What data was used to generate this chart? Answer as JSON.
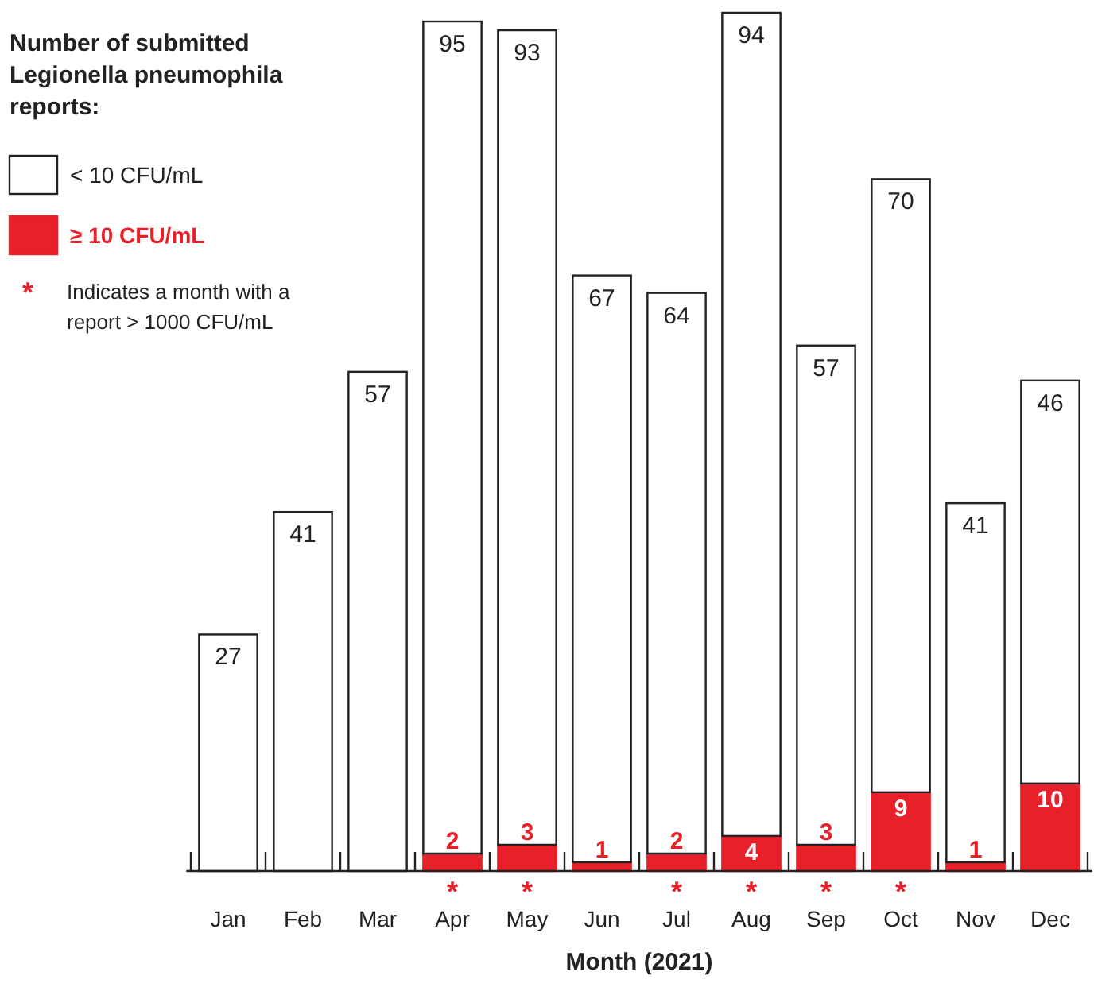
{
  "chart_data": {
    "type": "bar",
    "stacked": true,
    "data_labels": true,
    "legend": "top left",
    "legend_title": "Number of submitted Legionella pneumophila reports:",
    "xlabel": "Month (2021)",
    "categories": [
      "Jan",
      "Feb",
      "Mar",
      "Apr",
      "May",
      "Jun",
      "Jul",
      "Aug",
      "Sep",
      "Oct",
      "Nov",
      "Dec"
    ],
    "series": [
      {
        "name": "≥ 10 CFU/mL",
        "color": "#e8202a",
        "values": [
          null,
          null,
          null,
          2,
          3,
          1,
          2,
          4,
          3,
          9,
          1,
          10
        ]
      },
      {
        "name": "< 10 CFU/mL",
        "color": "#ffffff",
        "values": [
          27,
          41,
          57,
          95,
          93,
          67,
          64,
          94,
          57,
          70,
          41,
          46
        ]
      }
    ],
    "annotations": [
      {
        "text": "*",
        "x": "Apr",
        "y": 0
      },
      {
        "text": "*",
        "x": "May",
        "y": 0
      },
      {
        "text": "*",
        "x": "Jul",
        "y": 0
      },
      {
        "text": "*",
        "x": "Aug",
        "y": 0
      },
      {
        "text": "*",
        "x": "Sep",
        "y": 0
      },
      {
        "text": "*",
        "x": "Oct",
        "y": 0
      },
      "* Indicates a month with a report > 1000 CFU/mL"
    ]
  }
}
